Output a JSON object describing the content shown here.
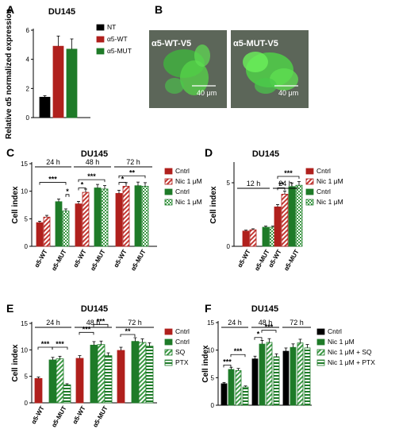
{
  "colors": {
    "black": "#000000",
    "red": "#b0201d",
    "green": "#1e7b28",
    "hatch_red": "#c33a35",
    "hatch_green": "#3d9a45"
  },
  "chart_data": [
    {
      "panel": "A",
      "type": "bar",
      "title": "DU145",
      "ylabel": "Relative α5 normalized expression",
      "ylim": [
        0,
        6
      ],
      "yticks": [
        0,
        2,
        4,
        6
      ],
      "categories": [
        "NT",
        "α5-WT",
        "α5-MUT"
      ],
      "values": [
        1.4,
        4.9,
        4.7
      ],
      "errors": [
        0.1,
        0.7,
        0.7
      ],
      "colors": [
        "#000000",
        "#b0201d",
        "#1e7b28"
      ],
      "legend": [
        "NT",
        "α5-WT",
        "α5-MUT"
      ]
    },
    {
      "panel": "C",
      "type": "bar",
      "title": "DU145",
      "ylabel": "Cell index",
      "ylim": [
        0,
        15
      ],
      "yticks": [
        0,
        5,
        10,
        15
      ],
      "groups": [
        "24 h",
        "48 h",
        "72 h"
      ],
      "xlabels": [
        "α5-WT",
        "α5-MUT",
        "α5-WT",
        "α5-MUT",
        "α5-WT",
        "α5-MUT"
      ],
      "legend": [
        "Cntrl",
        "Nic 1 μM",
        "Cntrl",
        "Nic 1 μM"
      ],
      "series": [
        {
          "name": "Cntrl",
          "values": [
            4.3,
            null,
            7.7,
            null,
            9.6,
            null
          ]
        },
        {
          "name": "Nic 1 μM",
          "values": [
            5.3,
            null,
            9.8,
            null,
            10.9,
            null
          ]
        },
        {
          "name": "Cntrl",
          "values": [
            null,
            8.1,
            null,
            10.6,
            null,
            11.0
          ]
        },
        {
          "name": "Nic 1 μM",
          "values": [
            null,
            6.4,
            null,
            10.4,
            null,
            10.9
          ]
        }
      ],
      "significance": [
        "***",
        "*",
        "*",
        "***",
        "*",
        "**"
      ]
    },
    {
      "panel": "D",
      "type": "bar",
      "title": "DU145",
      "ylabel": "Cell index",
      "ylim": [
        0,
        6.5
      ],
      "yticks": [
        0,
        5
      ],
      "groups": [
        "12 h",
        "24 h"
      ],
      "xlabels": [
        "α5-WT",
        "α5-MUT",
        "α5-WT",
        "α5-MUT"
      ],
      "legend": [
        "Cntrl",
        "Nic 1 μM",
        "Cntrl",
        "Nic 1 μM"
      ],
      "series": [
        {
          "name": "Cntrl",
          "values": [
            1.2,
            null,
            3.1,
            null
          ]
        },
        {
          "name": "Nic 1 μM",
          "values": [
            1.3,
            null,
            4.1,
            null
          ]
        },
        {
          "name": "Cntrl",
          "values": [
            null,
            1.5,
            null,
            4.7
          ]
        },
        {
          "name": "Nic 1 μM",
          "values": [
            null,
            1.5,
            null,
            4.8
          ]
        }
      ],
      "significance": [
        "**",
        "***"
      ]
    },
    {
      "panel": "E",
      "type": "bar",
      "title": "DU145",
      "ylabel": "Cell index",
      "ylim": [
        0,
        15
      ],
      "yticks": [
        0,
        5,
        10,
        15
      ],
      "groups": [
        "24 h",
        "48 h",
        "72 h"
      ],
      "xlabels": [
        "α5-WT",
        "α5-MUT",
        "α5-WT",
        "α5-MUT",
        "α5-WT",
        "α5-MUT"
      ],
      "legend": [
        "Cntrl",
        "Cntrl",
        "SQ",
        "PTX"
      ],
      "values": [
        4.6,
        8.1,
        8.3,
        3.4,
        8.4,
        10.9,
        11.0,
        8.9,
        9.9,
        11.6,
        11.4,
        10.7
      ],
      "significance": [
        "***",
        "***",
        "***",
        "***",
        "**"
      ]
    },
    {
      "panel": "F",
      "type": "bar",
      "title": "DU145",
      "ylabel": "Cell index",
      "ylim": [
        0,
        15
      ],
      "yticks": [
        0,
        5,
        10,
        15
      ],
      "groups": [
        "24 h",
        "48 h",
        "72 h"
      ],
      "legend": [
        "Cntrl",
        "Nic 1 μM",
        "Nic 1 μM + SQ",
        "Nic 1 μM + PTX"
      ],
      "values": [
        3.9,
        6.5,
        6.3,
        3.3,
        8.4,
        11.1,
        11.4,
        8.8,
        9.8,
        10.5,
        11.3,
        10.4
      ],
      "significance": [
        "***",
        "***",
        "*",
        "***"
      ]
    }
  ],
  "panel_letters": [
    "A",
    "B",
    "C",
    "D",
    "E",
    "F"
  ],
  "panel_b": {
    "left_label": "α5-WT-V5",
    "right_label": "α5-MUT-V5",
    "scale_bar": "40 μm"
  }
}
